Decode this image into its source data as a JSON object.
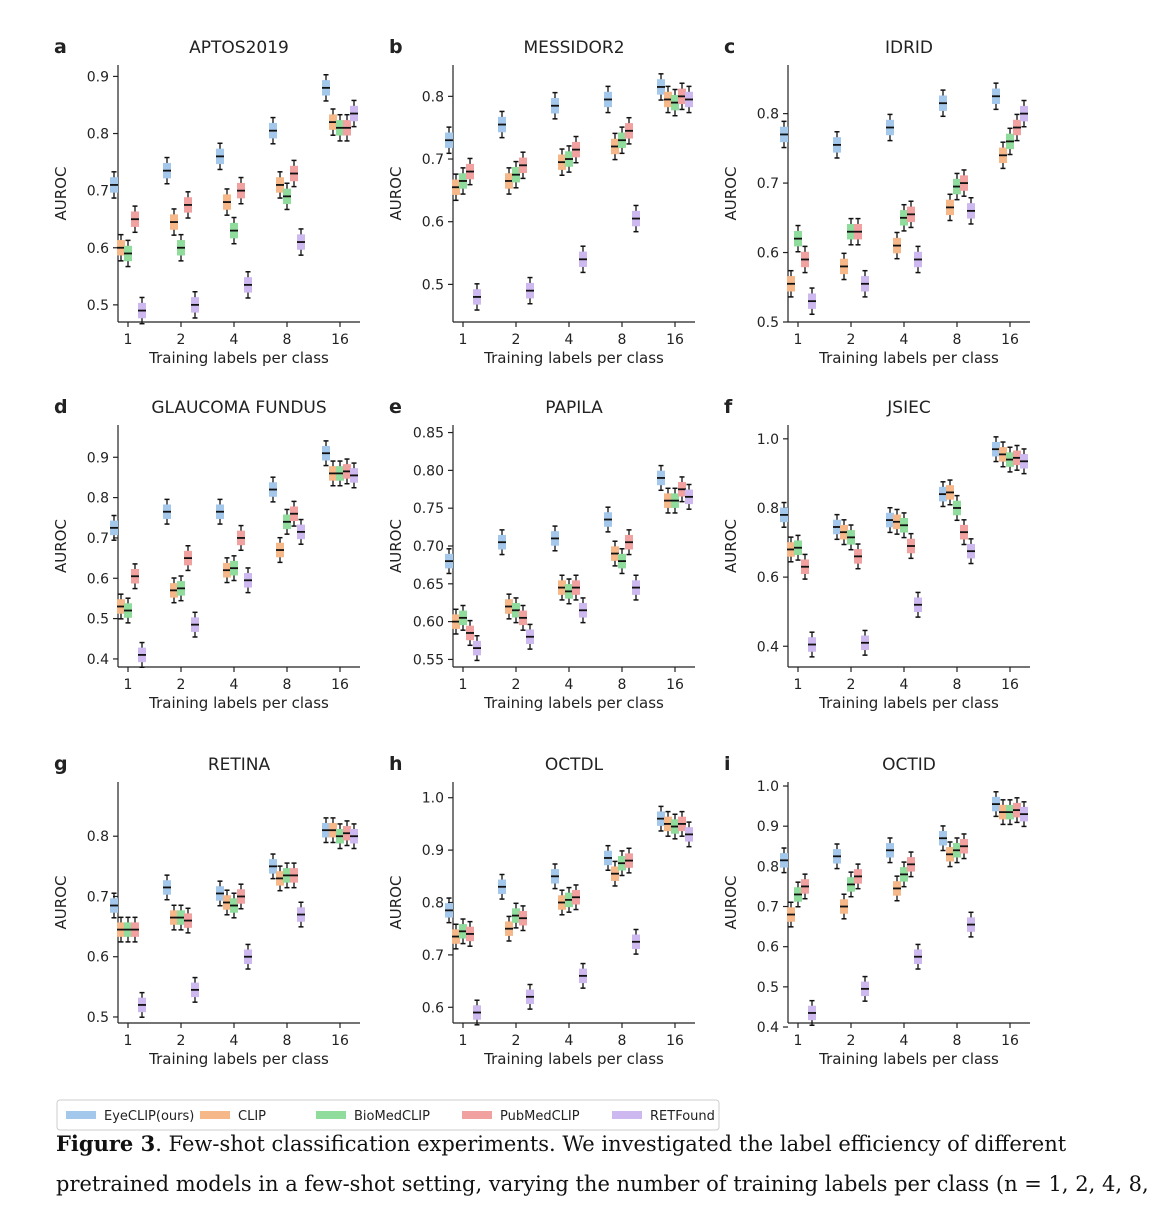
{
  "colors": {
    "EyeCLIP(ours)": "#a4c8ec",
    "CLIP": "#f7b889",
    "BioMedCLIP": "#8fdc9c",
    "PubMedCLIP": "#f2a1a1",
    "RETFound": "#cdb8ef"
  },
  "legend": {
    "placement": "bottom",
    "entries": [
      "EyeCLIP(ours)",
      "CLIP",
      "BioMedCLIP",
      "PubMedCLIP",
      "RETFound"
    ]
  },
  "caption": {
    "label": "Figure 3",
    "text": ". Few-shot classification experiments. We investigated the label efficiency of different",
    "line2": "pretrained models in a few-shot setting, varying the number of training labels per class (n = 1, 2, 4, 8,"
  },
  "chart_data": [
    {
      "panel": "a",
      "title": "APTOS2019",
      "type": "box",
      "xlabel": "Training labels per class",
      "ylabel": "AUROC",
      "categories": [
        "1",
        "2",
        "4",
        "8",
        "16"
      ],
      "ylim": [
        0.47,
        0.92
      ],
      "yticks": [
        0.5,
        0.6,
        0.7,
        0.8,
        0.9
      ],
      "ytick_labels": [
        "0.5",
        "0.6",
        "0.7",
        "0.8",
        "0.9"
      ],
      "series": [
        {
          "name": "EyeCLIP(ours)",
          "values": [
            0.71,
            0.735,
            0.76,
            0.805,
            0.88
          ]
        },
        {
          "name": "CLIP",
          "values": [
            0.6,
            0.645,
            0.68,
            0.71,
            0.82
          ]
        },
        {
          "name": "BioMedCLIP",
          "values": [
            0.59,
            0.6,
            0.63,
            0.69,
            0.81
          ]
        },
        {
          "name": "PubMedCLIP",
          "values": [
            0.65,
            0.675,
            0.7,
            0.73,
            0.81
          ]
        },
        {
          "name": "RETFound",
          "values": [
            0.49,
            0.5,
            0.535,
            0.61,
            0.835
          ]
        }
      ]
    },
    {
      "panel": "b",
      "title": "MESSIDOR2",
      "type": "box",
      "xlabel": "Training labels per class",
      "ylabel": "AUROC",
      "categories": [
        "1",
        "2",
        "4",
        "8",
        "16"
      ],
      "ylim": [
        0.44,
        0.85
      ],
      "yticks": [
        0.5,
        0.6,
        0.7,
        0.8
      ],
      "ytick_labels": [
        "0.5",
        "0.6",
        "0.7",
        "0.8"
      ],
      "series": [
        {
          "name": "EyeCLIP(ours)",
          "values": [
            0.73,
            0.755,
            0.785,
            0.795,
            0.815
          ]
        },
        {
          "name": "CLIP",
          "values": [
            0.655,
            0.665,
            0.695,
            0.72,
            0.795
          ]
        },
        {
          "name": "BioMedCLIP",
          "values": [
            0.665,
            0.675,
            0.7,
            0.73,
            0.79
          ]
        },
        {
          "name": "PubMedCLIP",
          "values": [
            0.68,
            0.69,
            0.715,
            0.745,
            0.8
          ]
        },
        {
          "name": "RETFound",
          "values": [
            0.48,
            0.49,
            0.54,
            0.605,
            0.795
          ]
        }
      ]
    },
    {
      "panel": "c",
      "title": "IDRID",
      "type": "box",
      "xlabel": "Training labels per class",
      "ylabel": "AUROC",
      "categories": [
        "1",
        "2",
        "4",
        "8",
        "16"
      ],
      "ylim": [
        0.5,
        0.87
      ],
      "yticks": [
        0.5,
        0.6,
        0.7,
        0.8
      ],
      "ytick_labels": [
        "0.5",
        "0.6",
        "0.7",
        "0.8"
      ],
      "series": [
        {
          "name": "EyeCLIP(ours)",
          "values": [
            0.77,
            0.755,
            0.78,
            0.815,
            0.825
          ]
        },
        {
          "name": "CLIP",
          "values": [
            0.555,
            0.58,
            0.61,
            0.665,
            0.74
          ]
        },
        {
          "name": "BioMedCLIP",
          "values": [
            0.62,
            0.63,
            0.65,
            0.695,
            0.76
          ]
        },
        {
          "name": "PubMedCLIP",
          "values": [
            0.59,
            0.63,
            0.655,
            0.7,
            0.78
          ]
        },
        {
          "name": "RETFound",
          "values": [
            0.53,
            0.555,
            0.59,
            0.66,
            0.8
          ]
        }
      ]
    },
    {
      "panel": "d",
      "title": "GLAUCOMA FUNDUS",
      "type": "box",
      "xlabel": "Training labels per class",
      "ylabel": "AUROC",
      "categories": [
        "1",
        "2",
        "4",
        "8",
        "16"
      ],
      "ylim": [
        0.38,
        0.98
      ],
      "yticks": [
        0.4,
        0.5,
        0.6,
        0.7,
        0.8,
        0.9
      ],
      "ytick_labels": [
        "0.4",
        "0.5",
        "0.6",
        "0.7",
        "0.8",
        "0.9"
      ],
      "series": [
        {
          "name": "EyeCLIP(ours)",
          "values": [
            0.725,
            0.765,
            0.765,
            0.82,
            0.91
          ]
        },
        {
          "name": "CLIP",
          "values": [
            0.53,
            0.57,
            0.62,
            0.67,
            0.86
          ]
        },
        {
          "name": "BioMedCLIP",
          "values": [
            0.52,
            0.575,
            0.625,
            0.74,
            0.86
          ]
        },
        {
          "name": "PubMedCLIP",
          "values": [
            0.605,
            0.65,
            0.7,
            0.76,
            0.865
          ]
        },
        {
          "name": "RETFound",
          "values": [
            0.41,
            0.485,
            0.595,
            0.715,
            0.855
          ]
        }
      ]
    },
    {
      "panel": "e",
      "title": "PAPILA",
      "type": "box",
      "xlabel": "Training labels per class",
      "ylabel": "AUROC",
      "categories": [
        "1",
        "2",
        "4",
        "8",
        "16"
      ],
      "ylim": [
        0.54,
        0.86
      ],
      "yticks": [
        0.55,
        0.6,
        0.65,
        0.7,
        0.75,
        0.8,
        0.85
      ],
      "ytick_labels": [
        "0.55",
        "0.60",
        "0.65",
        "0.70",
        "0.75",
        "0.80",
        "0.85"
      ],
      "series": [
        {
          "name": "EyeCLIP(ours)",
          "values": [
            0.68,
            0.705,
            0.71,
            0.735,
            0.79
          ]
        },
        {
          "name": "CLIP",
          "values": [
            0.6,
            0.62,
            0.645,
            0.69,
            0.76
          ]
        },
        {
          "name": "BioMedCLIP",
          "values": [
            0.605,
            0.615,
            0.64,
            0.68,
            0.76
          ]
        },
        {
          "name": "PubMedCLIP",
          "values": [
            0.585,
            0.605,
            0.645,
            0.705,
            0.775
          ]
        },
        {
          "name": "RETFound",
          "values": [
            0.565,
            0.58,
            0.615,
            0.645,
            0.765
          ]
        }
      ]
    },
    {
      "panel": "f",
      "title": "JSIEC",
      "type": "box",
      "xlabel": "Training labels per class",
      "ylabel": "AUROC",
      "categories": [
        "1",
        "2",
        "4",
        "8",
        "16"
      ],
      "ylim": [
        0.34,
        1.04
      ],
      "yticks": [
        0.4,
        0.6,
        0.8,
        1.0
      ],
      "ytick_labels": [
        "0.4",
        "0.6",
        "0.8",
        "1.0"
      ],
      "series": [
        {
          "name": "EyeCLIP(ours)",
          "values": [
            0.78,
            0.745,
            0.765,
            0.84,
            0.97
          ]
        },
        {
          "name": "CLIP",
          "values": [
            0.68,
            0.73,
            0.76,
            0.845,
            0.955
          ]
        },
        {
          "name": "BioMedCLIP",
          "values": [
            0.685,
            0.715,
            0.75,
            0.8,
            0.94
          ]
        },
        {
          "name": "PubMedCLIP",
          "values": [
            0.63,
            0.66,
            0.69,
            0.73,
            0.945
          ]
        },
        {
          "name": "RETFound",
          "values": [
            0.405,
            0.41,
            0.52,
            0.675,
            0.935
          ]
        }
      ]
    },
    {
      "panel": "g",
      "title": "RETINA",
      "type": "box",
      "xlabel": "Training labels per class",
      "ylabel": "AUROC",
      "categories": [
        "1",
        "2",
        "4",
        "8",
        "16"
      ],
      "ylim": [
        0.49,
        0.89
      ],
      "yticks": [
        0.5,
        0.6,
        0.7,
        0.8
      ],
      "ytick_labels": [
        "0.5",
        "0.6",
        "0.7",
        "0.8"
      ],
      "series": [
        {
          "name": "EyeCLIP(ours)",
          "values": [
            0.685,
            0.715,
            0.705,
            0.75,
            0.81
          ]
        },
        {
          "name": "CLIP",
          "values": [
            0.645,
            0.665,
            0.69,
            0.73,
            0.81
          ]
        },
        {
          "name": "BioMedCLIP",
          "values": [
            0.645,
            0.665,
            0.685,
            0.735,
            0.8
          ]
        },
        {
          "name": "PubMedCLIP",
          "values": [
            0.645,
            0.66,
            0.7,
            0.735,
            0.805
          ]
        },
        {
          "name": "RETFound",
          "values": [
            0.52,
            0.545,
            0.6,
            0.67,
            0.8
          ]
        }
      ]
    },
    {
      "panel": "h",
      "title": "OCTDL",
      "type": "box",
      "xlabel": "Training labels per class",
      "ylabel": "AUROC",
      "categories": [
        "1",
        "2",
        "4",
        "8",
        "16"
      ],
      "ylim": [
        0.57,
        1.03
      ],
      "yticks": [
        0.6,
        0.7,
        0.8,
        0.9,
        1.0
      ],
      "ytick_labels": [
        "0.6",
        "0.7",
        "0.8",
        "0.9",
        "1.0"
      ],
      "series": [
        {
          "name": "EyeCLIP(ours)",
          "values": [
            0.785,
            0.83,
            0.85,
            0.885,
            0.96
          ]
        },
        {
          "name": "CLIP",
          "values": [
            0.735,
            0.75,
            0.8,
            0.855,
            0.95
          ]
        },
        {
          "name": "BioMedCLIP",
          "values": [
            0.745,
            0.775,
            0.805,
            0.875,
            0.945
          ]
        },
        {
          "name": "PubMedCLIP",
          "values": [
            0.74,
            0.77,
            0.81,
            0.88,
            0.95
          ]
        },
        {
          "name": "RETFound",
          "values": [
            0.59,
            0.62,
            0.66,
            0.725,
            0.93
          ]
        }
      ]
    },
    {
      "panel": "i",
      "title": "OCTID",
      "type": "box",
      "xlabel": "Training labels per class",
      "ylabel": "AUROC",
      "categories": [
        "1",
        "2",
        "4",
        "8",
        "16"
      ],
      "ylim": [
        0.41,
        1.01
      ],
      "yticks": [
        0.4,
        0.5,
        0.6,
        0.7,
        0.8,
        0.9,
        1.0
      ],
      "ytick_labels": [
        "0.4",
        "0.5",
        "0.6",
        "0.7",
        "0.8",
        "0.9",
        "1.0"
      ],
      "series": [
        {
          "name": "EyeCLIP(ours)",
          "values": [
            0.815,
            0.825,
            0.84,
            0.87,
            0.955
          ]
        },
        {
          "name": "CLIP",
          "values": [
            0.68,
            0.7,
            0.745,
            0.83,
            0.935
          ]
        },
        {
          "name": "BioMedCLIP",
          "values": [
            0.73,
            0.755,
            0.78,
            0.84,
            0.935
          ]
        },
        {
          "name": "PubMedCLIP",
          "values": [
            0.75,
            0.775,
            0.805,
            0.85,
            0.94
          ]
        },
        {
          "name": "RETFound",
          "values": [
            0.435,
            0.495,
            0.575,
            0.655,
            0.93
          ]
        }
      ]
    }
  ]
}
